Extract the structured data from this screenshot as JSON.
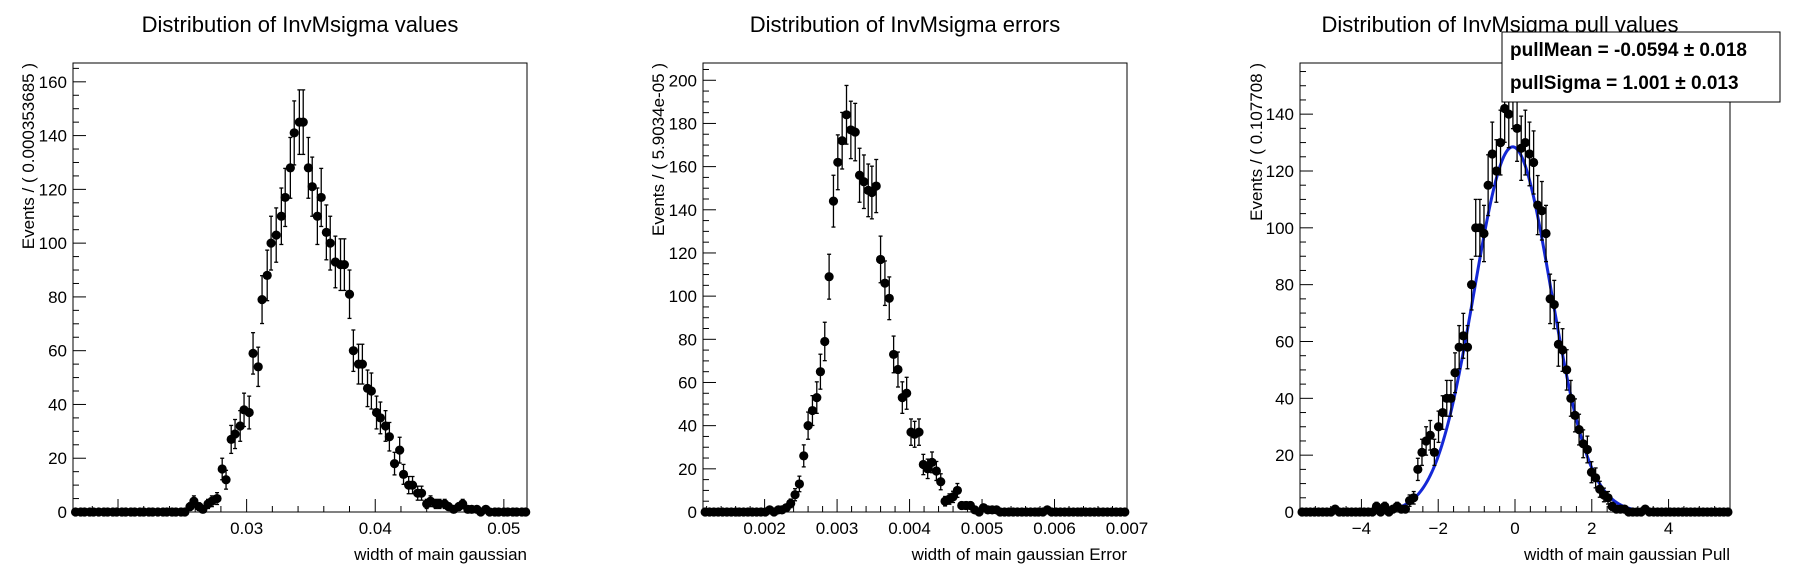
{
  "chart_data": [
    {
      "type": "scatter",
      "title": "Distribution of InvMsigma values",
      "xlabel": "width of main gaussian",
      "ylabel": "Events / ( 0.000353685 )",
      "xlim": [
        0.0165,
        0.0518
      ],
      "ylim": [
        0,
        167
      ],
      "xticks": [
        0.03,
        0.04,
        0.05
      ],
      "xticklabels": [
        "0.03",
        "0.04",
        "0.05"
      ],
      "yticks": [
        0,
        20,
        40,
        60,
        80,
        100,
        120,
        140,
        160
      ],
      "yticklabels": [
        "0",
        "20",
        "40",
        "60",
        "80",
        "100",
        "120",
        "140",
        "160"
      ],
      "grid": false,
      "x": [
        0.0167,
        0.0171,
        0.0174,
        0.0178,
        0.0181,
        0.0185,
        0.0189,
        0.0192,
        0.0196,
        0.0199,
        0.0203,
        0.0206,
        0.021,
        0.0213,
        0.0217,
        0.022,
        0.0224,
        0.0227,
        0.0231,
        0.0235,
        0.0238,
        0.0242,
        0.0245,
        0.0249,
        0.0252,
        0.0256,
        0.0259,
        0.0263,
        0.0266,
        0.027,
        0.0273,
        0.0277,
        0.0281,
        0.0284,
        0.0288,
        0.0291,
        0.0295,
        0.0298,
        0.0302,
        0.0305,
        0.0309,
        0.0312,
        0.0316,
        0.0319,
        0.0323,
        0.0327,
        0.033,
        0.0334,
        0.0337,
        0.0341,
        0.0344,
        0.0348,
        0.0351,
        0.0355,
        0.0358,
        0.0362,
        0.0365,
        0.0369,
        0.0373,
        0.0376,
        0.038,
        0.0383,
        0.0387,
        0.039,
        0.0394,
        0.0397,
        0.0401,
        0.0404,
        0.0408,
        0.0411,
        0.0415,
        0.0419,
        0.0422,
        0.0426,
        0.0429,
        0.0433,
        0.0436,
        0.044,
        0.0443,
        0.0447,
        0.045,
        0.0454,
        0.0457,
        0.0461,
        0.0465,
        0.0468,
        0.0472,
        0.0475,
        0.0479,
        0.0482,
        0.0486,
        0.0489,
        0.0493,
        0.0496,
        0.05,
        0.0503,
        0.0507,
        0.051,
        0.0514,
        0.0517
      ],
      "series": [
        {
          "y": [
            0,
            0,
            0,
            0,
            0,
            0,
            0,
            0,
            0,
            0,
            0,
            0,
            0,
            0,
            0,
            0,
            0,
            0,
            0,
            0,
            0,
            0,
            0,
            0,
            0,
            2,
            4,
            2,
            1,
            3,
            4,
            5,
            16,
            12,
            27,
            29,
            32,
            38,
            37,
            59,
            54,
            79,
            88,
            100,
            103,
            110,
            117,
            128,
            141,
            145,
            145,
            128,
            121,
            110,
            117,
            104,
            100,
            93,
            92,
            92,
            81,
            60,
            55,
            55,
            46,
            45,
            37,
            35,
            32,
            28,
            18,
            23,
            14,
            10,
            10,
            7,
            7,
            3,
            4,
            3,
            3,
            3,
            2,
            1,
            2,
            3,
            1,
            1,
            1,
            0,
            1,
            0,
            0,
            0,
            0,
            0,
            0,
            0,
            0,
            0
          ],
          "err": [
            0,
            0,
            0,
            0,
            0,
            0,
            0,
            0,
            0,
            0,
            0,
            0,
            0,
            0,
            0,
            0,
            0,
            0,
            0,
            0,
            0,
            0,
            0,
            0,
            0,
            1.4,
            2,
            1.4,
            1,
            1.7,
            2,
            2.2,
            4,
            3.5,
            5.2,
            5.4,
            5.7,
            6.2,
            6.1,
            7.7,
            7.3,
            8.9,
            9.4,
            10,
            10.1,
            10.5,
            10.8,
            11.3,
            11.9,
            12,
            12,
            11.3,
            11,
            10.5,
            10.8,
            10.2,
            10,
            9.6,
            9.6,
            9.6,
            9,
            7.7,
            7.4,
            7.4,
            6.8,
            6.7,
            6.1,
            5.9,
            5.7,
            5.3,
            4.2,
            4.8,
            3.7,
            3.2,
            3.2,
            2.6,
            2.6,
            1.7,
            2,
            1.7,
            1.7,
            1.7,
            1.4,
            1,
            1.4,
            1.7,
            1,
            1,
            1,
            0,
            1,
            0,
            0,
            0,
            0,
            0,
            0,
            0,
            0,
            0
          ]
        }
      ]
    },
    {
      "type": "scatter",
      "title": "Distribution of InvMsigma errors",
      "xlabel": "width of main gaussian Error",
      "ylabel": "Events / ( 5.9034e-05 )",
      "xlim": [
        0.00115,
        0.007
      ],
      "ylim": [
        0,
        208
      ],
      "xticks": [
        0.002,
        0.003,
        0.004,
        0.005,
        0.006,
        0.007
      ],
      "xticklabels": [
        "0.002",
        "0.003",
        "0.004",
        "0.005",
        "0.006",
        "0.007"
      ],
      "yticks": [
        0,
        20,
        40,
        60,
        80,
        100,
        120,
        140,
        160,
        180,
        200
      ],
      "yticklabels": [
        "0",
        "20",
        "40",
        "60",
        "80",
        "100",
        "120",
        "140",
        "160",
        "180",
        "200"
      ],
      "grid": false,
      "x": [
        0.00118,
        0.00124,
        0.0013,
        0.00136,
        0.00142,
        0.00148,
        0.00154,
        0.0016,
        0.00165,
        0.00171,
        0.00177,
        0.00183,
        0.00189,
        0.00195,
        0.00201,
        0.00207,
        0.00213,
        0.00219,
        0.00224,
        0.0023,
        0.00236,
        0.00242,
        0.00248,
        0.00254,
        0.0026,
        0.00266,
        0.00272,
        0.00277,
        0.00283,
        0.00289,
        0.00295,
        0.00301,
        0.00307,
        0.00313,
        0.00319,
        0.00325,
        0.00331,
        0.00337,
        0.00343,
        0.00348,
        0.00354,
        0.0036,
        0.00366,
        0.00372,
        0.00378,
        0.00384,
        0.0039,
        0.00396,
        0.00402,
        0.00407,
        0.00413,
        0.00419,
        0.00425,
        0.00431,
        0.00437,
        0.00443,
        0.00449,
        0.00455,
        0.0046,
        0.00466,
        0.00472,
        0.00478,
        0.00484,
        0.0049,
        0.00496,
        0.00502,
        0.00508,
        0.00514,
        0.0052,
        0.00525,
        0.00531,
        0.00537,
        0.00543,
        0.00549,
        0.00555,
        0.00561,
        0.00567,
        0.00573,
        0.00578,
        0.00584,
        0.0059,
        0.00596,
        0.00602,
        0.00608,
        0.00614,
        0.0062,
        0.00626,
        0.00632,
        0.00637,
        0.00643,
        0.00649,
        0.00655,
        0.00661,
        0.00667,
        0.00673,
        0.00679,
        0.00685,
        0.00691,
        0.00697
      ],
      "series": [
        {
          "y": [
            0,
            0,
            0,
            0,
            0,
            0,
            0,
            0,
            0,
            0,
            0,
            0,
            0,
            0,
            0,
            1,
            0,
            1,
            1,
            2,
            4,
            8,
            13,
            26,
            40,
            47,
            53,
            65,
            79,
            109,
            144,
            162,
            172,
            184,
            177,
            176,
            156,
            153,
            149,
            148,
            151,
            117,
            106,
            99,
            73,
            66,
            53,
            55,
            37,
            36,
            37,
            22,
            20,
            23,
            19,
            14,
            5,
            6,
            7,
            10,
            3,
            3,
            3,
            1,
            0,
            2,
            1,
            1,
            1,
            0,
            0,
            0,
            0,
            0,
            0,
            0,
            0,
            0,
            0,
            0,
            1,
            0,
            0,
            0,
            0,
            0,
            0,
            0,
            0,
            0,
            0,
            0,
            0,
            0,
            0,
            0,
            0,
            0,
            0
          ],
          "err": [
            0,
            0,
            0,
            0,
            0,
            0,
            0,
            0,
            0,
            0,
            0,
            0,
            0,
            0,
            0,
            1,
            0,
            1,
            1,
            1.4,
            2,
            2.8,
            3.6,
            5.1,
            6.3,
            6.9,
            7.3,
            8.1,
            8.9,
            10.4,
            12,
            12.7,
            13.1,
            13.6,
            13.3,
            13.3,
            12.5,
            12.4,
            12.2,
            12.2,
            12.3,
            10.8,
            10.3,
            9.9,
            8.5,
            8.1,
            7.3,
            7.4,
            6.1,
            6,
            6.1,
            4.7,
            4.5,
            4.8,
            4.4,
            3.7,
            2.2,
            2.4,
            2.6,
            3.2,
            1.7,
            1.7,
            1.7,
            1,
            0,
            1.4,
            1,
            1,
            1,
            0,
            0,
            0,
            0,
            0,
            0,
            0,
            0,
            0,
            0,
            0,
            1,
            0,
            0,
            0,
            0,
            0,
            0,
            0,
            0,
            0,
            0,
            0,
            0,
            0,
            0,
            0,
            0,
            0,
            0
          ]
        }
      ]
    },
    {
      "type": "scatter",
      "title": "Distribution of InvMsigma pull values",
      "xlabel": "width of main gaussian Pull",
      "ylabel": "Events / ( 0.107708 )",
      "xlim": [
        -5.6,
        5.6
      ],
      "ylim": [
        0,
        158
      ],
      "xticks": [
        -4,
        -2,
        0,
        2,
        4
      ],
      "xticklabels": [
        "−4",
        "−2",
        "0",
        "2",
        "4"
      ],
      "yticks": [
        0,
        20,
        40,
        60,
        80,
        100,
        120,
        140
      ],
      "yticklabels": [
        "0",
        "20",
        "40",
        "60",
        "80",
        "100",
        "120",
        "140"
      ],
      "grid": false,
      "x": [
        -5.546,
        -5.438,
        -5.331,
        -5.223,
        -5.115,
        -5.008,
        -4.9,
        -4.792,
        -4.685,
        -4.577,
        -4.469,
        -4.362,
        -4.254,
        -4.146,
        -4.038,
        -3.931,
        -3.823,
        -3.715,
        -3.608,
        -3.5,
        -3.392,
        -3.285,
        -3.177,
        -3.069,
        -2.962,
        -2.854,
        -2.746,
        -2.638,
        -2.531,
        -2.423,
        -2.315,
        -2.208,
        -2.1,
        -1.992,
        -1.885,
        -1.777,
        -1.669,
        -1.562,
        -1.454,
        -1.346,
        -1.238,
        -1.131,
        -1.023,
        -0.915,
        -0.808,
        -0.7,
        -0.592,
        -0.485,
        -0.377,
        -0.269,
        -0.162,
        -0.054,
        0.054,
        0.162,
        0.269,
        0.377,
        0.485,
        0.592,
        0.7,
        0.808,
        0.915,
        1.023,
        1.131,
        1.238,
        1.346,
        1.454,
        1.562,
        1.669,
        1.777,
        1.885,
        1.992,
        2.1,
        2.208,
        2.315,
        2.423,
        2.531,
        2.638,
        2.746,
        2.854,
        2.962,
        3.069,
        3.177,
        3.285,
        3.392,
        3.5,
        3.608,
        3.715,
        3.823,
        3.931,
        4.038,
        4.146,
        4.254,
        4.362,
        4.469,
        4.577,
        4.685,
        4.792,
        4.9,
        5.008,
        5.115,
        5.223,
        5.331,
        5.438,
        5.546
      ],
      "series": [
        {
          "name": "data",
          "y": [
            0,
            0,
            0,
            0,
            0,
            0,
            0,
            0,
            1,
            0,
            0,
            0,
            0,
            0,
            0,
            0,
            0,
            0,
            2,
            0,
            2,
            0,
            1,
            2,
            1,
            1,
            4,
            5,
            15,
            21,
            25,
            27,
            21,
            30,
            35,
            40,
            40,
            49,
            58,
            62,
            58,
            80,
            100,
            100,
            98,
            115,
            126,
            120,
            130,
            142,
            140,
            147,
            135,
            128,
            130,
            126,
            123,
            108,
            106,
            98,
            75,
            73,
            59,
            57,
            50,
            40,
            34,
            29,
            24,
            22,
            14,
            12,
            8,
            6,
            5,
            2,
            1,
            1,
            1,
            0,
            0,
            0,
            0,
            1,
            0,
            0,
            0,
            0,
            0,
            0,
            0,
            0,
            0,
            0,
            0,
            0,
            0,
            0,
            0,
            0,
            0,
            0,
            0,
            0
          ],
          "err": [
            0,
            0,
            0,
            0,
            0,
            0,
            0,
            0,
            1,
            0,
            0,
            0,
            0,
            0,
            0,
            0,
            0,
            0,
            1.4,
            0,
            1.4,
            0,
            1,
            1.4,
            1,
            1,
            2,
            2.2,
            3.9,
            4.6,
            5,
            5.2,
            4.6,
            5.5,
            5.9,
            6.3,
            6.3,
            7,
            7.6,
            7.9,
            7.6,
            8.9,
            10,
            10,
            9.9,
            10.7,
            11.2,
            11,
            11.4,
            11.9,
            11.8,
            12.1,
            11.6,
            11.3,
            11.4,
            11.2,
            11.1,
            10.4,
            10.3,
            9.9,
            8.7,
            8.5,
            7.7,
            7.5,
            7.1,
            6.3,
            5.8,
            5.4,
            4.9,
            4.7,
            3.7,
            3.5,
            2.8,
            2.4,
            2.2,
            1.4,
            1,
            1,
            1,
            0,
            0,
            0,
            0,
            1,
            0,
            0,
            0,
            0,
            0,
            0,
            0,
            0,
            0,
            0,
            0,
            0,
            0,
            0,
            0,
            0,
            0,
            0,
            0,
            0
          ]
        },
        {
          "name": "fit",
          "gauss": {
            "amplitude": 128.5,
            "mean": -0.0594,
            "sigma": 1.001
          }
        }
      ],
      "stats": [
        {
          "label": "pullMean = -0.0594 ± 0.018"
        },
        {
          "label": "pullSigma =  1.001 ± 0.013"
        }
      ],
      "colors": {
        "fit": "#1428d6"
      }
    }
  ]
}
